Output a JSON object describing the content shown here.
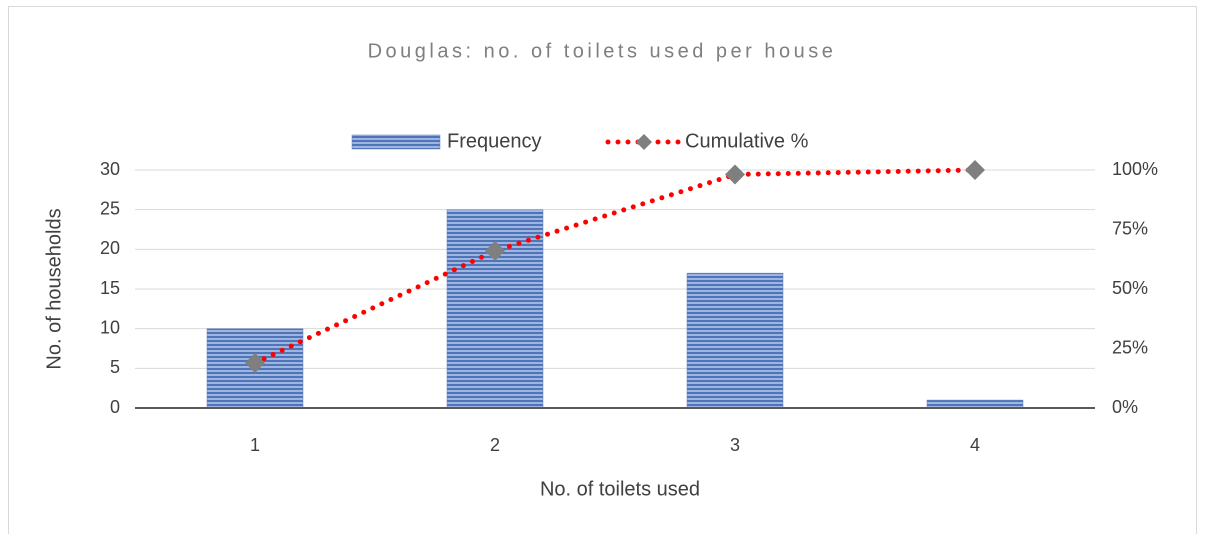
{
  "chart_data": {
    "type": "bar",
    "title": "Douglas: no. of toilets used per house",
    "x_label": "No. of toilets used",
    "y_label": "No. of households",
    "categories": [
      "1",
      "2",
      "3",
      "4"
    ],
    "series": [
      {
        "name": "Frequency",
        "type": "bar",
        "color": "#5b7fbf",
        "values": [
          10,
          25,
          17,
          1
        ]
      },
      {
        "name": "Cumulative %",
        "type": "line",
        "axis": "y2",
        "color": "#ff0000",
        "marker_color": "#7f7f7f",
        "values": [
          18.9,
          66.0,
          98.1,
          100
        ]
      }
    ],
    "ylim": [
      0,
      30
    ],
    "yticks": [
      0,
      5,
      10,
      15,
      20,
      25,
      30
    ],
    "y2lim": [
      0,
      100
    ],
    "y2ticks": [
      {
        "value": 0,
        "label": "0%"
      },
      {
        "value": 25,
        "label": "25%"
      },
      {
        "value": 50,
        "label": "50%"
      },
      {
        "value": 75,
        "label": "75%"
      },
      {
        "value": 100,
        "label": "100%"
      }
    ],
    "grid": true,
    "legend": "top"
  }
}
